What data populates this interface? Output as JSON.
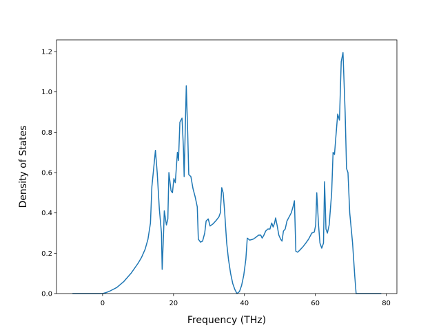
{
  "chart_data": {
    "type": "line",
    "xlabel": "Frequency (THz)",
    "ylabel": "Density of States",
    "xlim": [
      -13,
      83
    ],
    "ylim": [
      0,
      1.258
    ],
    "xticks": [
      0,
      20,
      40,
      60,
      80
    ],
    "yticks": [
      {
        "value": 0,
        "label": "0.0"
      },
      0.2,
      0.4,
      0.6,
      0.8,
      {
        "value": 1,
        "label": "1.0"
      },
      1.2
    ],
    "series": [
      {
        "color": "#1f77b4",
        "x": [
          -8.5,
          0,
          1,
          2,
          4,
          6,
          8,
          10,
          11,
          12,
          12.8,
          13.5,
          13.9,
          14.4,
          14.9,
          15.4,
          16,
          16.6,
          16.8,
          17.2,
          17.4,
          18,
          18.4,
          18.7,
          19.3,
          19.7,
          20.1,
          20.5,
          21.1,
          21.4,
          21.8,
          22.4,
          22.8,
          23,
          23.6,
          24,
          24.3,
          24.9,
          25.5,
          26.1,
          26.7,
          27,
          27.6,
          28.2,
          28.8,
          29.2,
          29.8,
          30.3,
          31.1,
          31.9,
          32.8,
          33.2,
          33.6,
          34,
          34.4,
          35,
          35.5,
          36.1,
          36.7,
          37.3,
          37.9,
          38.6,
          39.2,
          39.8,
          40.4,
          40.8,
          41.5,
          42.5,
          43.3,
          44,
          44.6,
          45,
          45.5,
          46,
          46.6,
          47.2,
          47.7,
          48.1,
          48.5,
          48.8,
          49.2,
          49.7,
          50.2,
          50.6,
          51,
          51.5,
          52,
          52.6,
          53.2,
          53.7,
          54.1,
          54.5,
          55,
          55.6,
          56.4,
          57.3,
          58.1,
          59,
          59.7,
          60.1,
          60.4,
          60.9,
          61.3,
          61.8,
          62.3,
          62.6,
          63,
          63.4,
          63.9,
          64.6,
          65,
          65.4,
          65.8,
          66.3,
          66.8,
          67.3,
          67.8,
          68.4,
          68.8,
          69.2,
          69.7,
          70.5,
          71.1,
          71.5,
          78.6
        ],
        "values": [
          0,
          0,
          0.005,
          0.012,
          0.03,
          0.06,
          0.1,
          0.15,
          0.18,
          0.22,
          0.27,
          0.35,
          0.53,
          0.62,
          0.71,
          0.6,
          0.42,
          0.3,
          0.12,
          0.3,
          0.41,
          0.34,
          0.37,
          0.6,
          0.51,
          0.5,
          0.57,
          0.55,
          0.7,
          0.66,
          0.85,
          0.87,
          0.72,
          0.58,
          1.03,
          0.8,
          0.59,
          0.58,
          0.52,
          0.48,
          0.43,
          0.27,
          0.255,
          0.26,
          0.3,
          0.36,
          0.37,
          0.335,
          0.345,
          0.36,
          0.38,
          0.4,
          0.525,
          0.5,
          0.41,
          0.25,
          0.17,
          0.1,
          0.05,
          0.02,
          0,
          0.01,
          0.04,
          0.09,
          0.17,
          0.275,
          0.265,
          0.27,
          0.28,
          0.29,
          0.29,
          0.275,
          0.29,
          0.31,
          0.32,
          0.32,
          0.35,
          0.33,
          0.35,
          0.375,
          0.34,
          0.29,
          0.27,
          0.26,
          0.31,
          0.32,
          0.36,
          0.38,
          0.4,
          0.43,
          0.46,
          0.21,
          0.205,
          0.215,
          0.23,
          0.25,
          0.27,
          0.3,
          0.305,
          0.34,
          0.5,
          0.34,
          0.25,
          0.225,
          0.25,
          0.555,
          0.32,
          0.3,
          0.34,
          0.5,
          0.7,
          0.69,
          0.78,
          0.89,
          0.86,
          1.15,
          1.195,
          0.9,
          0.62,
          0.6,
          0.4,
          0.25,
          0.09,
          0,
          0
        ]
      }
    ]
  }
}
